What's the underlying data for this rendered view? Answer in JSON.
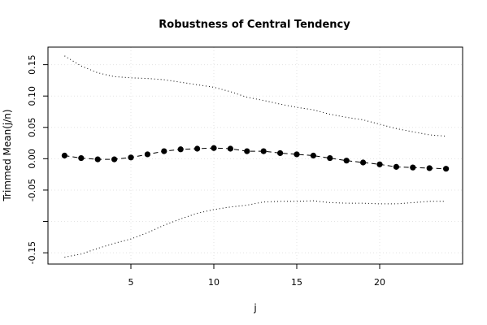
{
  "chart_data": {
    "type": "line",
    "title": "Robustness of Central Tendency",
    "xlabel": "j",
    "ylabel": "Trimmed Mean(j/n)",
    "xlim": [
      0,
      25
    ],
    "ylim": [
      -0.168,
      0.178
    ],
    "x_ticks": [
      5,
      10,
      15,
      20
    ],
    "x_tick_labels": [
      "5",
      "10",
      "15",
      "20"
    ],
    "y_ticks": [
      -0.15,
      -0.1,
      -0.05,
      0.0,
      0.05,
      0.1,
      0.15
    ],
    "y_tick_labels": [
      "-0.15",
      "",
      "-0.05",
      "0.00",
      "0.05",
      "0.10",
      "0.15"
    ],
    "grid": true,
    "x": [
      1,
      2,
      3,
      4,
      5,
      6,
      7,
      8,
      9,
      10,
      11,
      12,
      13,
      14,
      15,
      16,
      17,
      18,
      19,
      20,
      21,
      22,
      23,
      24
    ],
    "series": [
      {
        "style": "dashed-with-points",
        "color": "#000000",
        "values": [
          0.005,
          0.001,
          -0.001,
          -0.001,
          0.002,
          0.007,
          0.012,
          0.015,
          0.016,
          0.017,
          0.016,
          0.012,
          0.012,
          0.009,
          0.007,
          0.005,
          0.001,
          -0.003,
          -0.006,
          -0.009,
          -0.013,
          -0.014,
          -0.015,
          -0.016
        ]
      },
      {
        "style": "dotted",
        "color": "#000000",
        "values": [
          0.164,
          0.148,
          0.137,
          0.131,
          0.129,
          0.128,
          0.126,
          0.122,
          0.118,
          0.114,
          0.107,
          0.098,
          0.093,
          0.087,
          0.082,
          0.078,
          0.071,
          0.066,
          0.062,
          0.055,
          0.048,
          0.043,
          0.038,
          0.036
        ]
      },
      {
        "style": "dotted",
        "color": "#000000",
        "values": [
          -0.157,
          -0.152,
          -0.143,
          -0.135,
          -0.128,
          -0.118,
          -0.106,
          -0.096,
          -0.087,
          -0.081,
          -0.077,
          -0.074,
          -0.069,
          -0.068,
          -0.068,
          -0.067,
          -0.07,
          -0.071,
          -0.071,
          -0.072,
          -0.072,
          -0.07,
          -0.068,
          -0.068
        ]
      }
    ]
  }
}
